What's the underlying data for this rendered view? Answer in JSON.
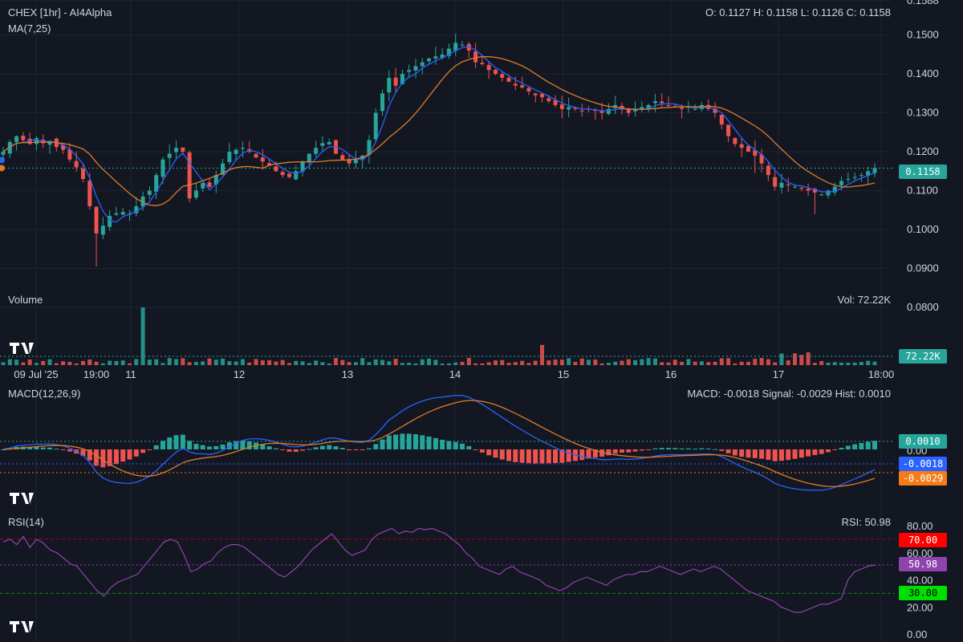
{
  "header": {
    "title": "CHEX [1hr] - AI4Alpha",
    "ma_label": "MA(7,25)",
    "ohlc": "O: 0.1127 H: 0.1158 L: 0.1126 C: 0.1158"
  },
  "volume_panel": {
    "label": "Volume",
    "readout": "Vol: 72.22K",
    "tag": "72.22K"
  },
  "macd_panel": {
    "label": "MACD(12,26,9)",
    "readout": "MACD: -0.0018 Signal: -0.0029 Hist: 0.0010",
    "tag_hist": "0.0010",
    "tag_macd": "-0.0018",
    "tag_signal": "-0.0029"
  },
  "rsi_panel": {
    "label": "RSI(14)",
    "readout": "RSI: 50.98",
    "tag_70": "70.00",
    "tag_rsi": "50.98",
    "tag_30": "30.00"
  },
  "price_tag": "0.1158",
  "colors": {
    "up": "#26a69a",
    "down": "#ef5350",
    "ma7": "#2962ff",
    "ma25": "#e07b26",
    "macd": "#2962ff",
    "signal": "#e07b26",
    "rsi": "#8e44ad",
    "tag_hist": "#26a69a",
    "tag_macd": "#2962ff",
    "tag_signal": "#f57c17",
    "tag_70": "#ff0000",
    "tag_rsi": "#8e44ad",
    "tag_30": "#00e000"
  },
  "chart_data": [
    {
      "type": "candlestick",
      "title": "CHEX [1hr] - AI4Alpha",
      "x_ticks": [
        "09 Jul '25",
        "19:00",
        "11",
        "12",
        "13",
        "14",
        "15",
        "16",
        "17",
        "18:00"
      ],
      "y_ticks": [
        "0.1588",
        "0.1500",
        "0.1400",
        "0.1300",
        "0.1200",
        "0.1100",
        "0.1000",
        "0.0900",
        "0.0800"
      ],
      "ylim": [
        0.0765,
        0.159
      ],
      "last_price": 0.1158,
      "closes": [
        0.12,
        0.1225,
        0.124,
        0.123,
        0.122,
        0.1235,
        0.1222,
        0.1228,
        0.1212,
        0.1205,
        0.118,
        0.116,
        0.113,
        0.106,
        0.099,
        0.101,
        0.1035,
        0.1042,
        0.1045,
        0.104,
        0.106,
        0.1085,
        0.11,
        0.114,
        0.118,
        0.1195,
        0.121,
        0.12,
        0.108,
        0.11,
        0.112,
        0.111,
        0.114,
        0.117,
        0.12,
        0.1205,
        0.121,
        0.12,
        0.1185,
        0.1175,
        0.1165,
        0.115,
        0.114,
        0.1135,
        0.115,
        0.1175,
        0.1195,
        0.121,
        0.1222,
        0.1225,
        0.1195,
        0.118,
        0.117,
        0.118,
        0.119,
        0.123,
        0.13,
        0.135,
        0.139,
        0.137,
        0.14,
        0.141,
        0.142,
        0.143,
        0.144,
        0.1445,
        0.145,
        0.1465,
        0.148,
        0.1475,
        0.146,
        0.143,
        0.1425,
        0.141,
        0.14,
        0.139,
        0.138,
        0.137,
        0.1365,
        0.1355,
        0.1345,
        0.134,
        0.133,
        0.132,
        0.131,
        0.1315,
        0.131,
        0.1305,
        0.131,
        0.1305,
        0.13,
        0.131,
        0.132,
        0.131,
        0.13,
        0.131,
        0.1315,
        0.132,
        0.133,
        0.1325,
        0.132,
        0.1315,
        0.131,
        0.1315,
        0.131,
        0.132,
        0.131,
        0.13,
        0.127,
        0.124,
        0.122,
        0.121,
        0.12,
        0.119,
        0.117,
        0.114,
        0.111,
        0.112,
        0.1115,
        0.111,
        0.1105,
        0.11,
        0.1095,
        0.109,
        0.11,
        0.111,
        0.1125,
        0.113,
        0.1135,
        0.114,
        0.115,
        0.1158
      ],
      "ma7_ends": [
        0.1235,
        0.1125
      ],
      "ma25_ends": [
        0.1185,
        0.1145
      ]
    },
    {
      "type": "bar",
      "title": "Volume",
      "last_value": "72.22K",
      "spikes": [
        {
          "index": 21,
          "level": 1.0
        },
        {
          "index": 81,
          "level": 0.35
        }
      ]
    },
    {
      "type": "line",
      "title": "MACD(12,26,9)",
      "series": [
        {
          "name": "MACD",
          "last": -0.0018
        },
        {
          "name": "Signal",
          "last": -0.0029
        },
        {
          "name": "Hist",
          "last": 0.001
        }
      ]
    },
    {
      "type": "line",
      "title": "RSI(14)",
      "y_ticks": [
        "80.00",
        "60.00",
        "40.00",
        "20.00",
        "0.00"
      ],
      "ylim": [
        0,
        80
      ],
      "bands": [
        70,
        30
      ],
      "rsi": [
        68,
        70,
        66,
        72,
        64,
        70,
        67,
        62,
        60,
        56,
        52,
        50,
        44,
        38,
        32,
        28,
        34,
        38,
        40,
        42,
        44,
        50,
        56,
        62,
        68,
        70,
        68,
        58,
        46,
        48,
        52,
        54,
        60,
        64,
        66,
        66,
        64,
        60,
        56,
        52,
        48,
        44,
        42,
        46,
        50,
        56,
        62,
        66,
        70,
        74,
        68,
        62,
        58,
        60,
        62,
        70,
        74,
        76,
        78,
        74,
        76,
        75,
        78,
        77,
        78,
        76,
        74,
        70,
        66,
        60,
        56,
        50,
        48,
        46,
        44,
        48,
        50,
        46,
        44,
        42,
        40,
        36,
        34,
        32,
        34,
        38,
        40,
        42,
        40,
        38,
        36,
        40,
        42,
        44,
        44,
        46,
        46,
        48,
        50,
        48,
        46,
        44,
        46,
        48,
        46,
        48,
        50,
        48,
        44,
        40,
        36,
        32,
        30,
        28,
        26,
        24,
        20,
        18,
        16,
        16,
        18,
        20,
        22,
        22,
        24,
        26,
        40,
        46,
        48,
        50,
        50.98
      ]
    }
  ]
}
